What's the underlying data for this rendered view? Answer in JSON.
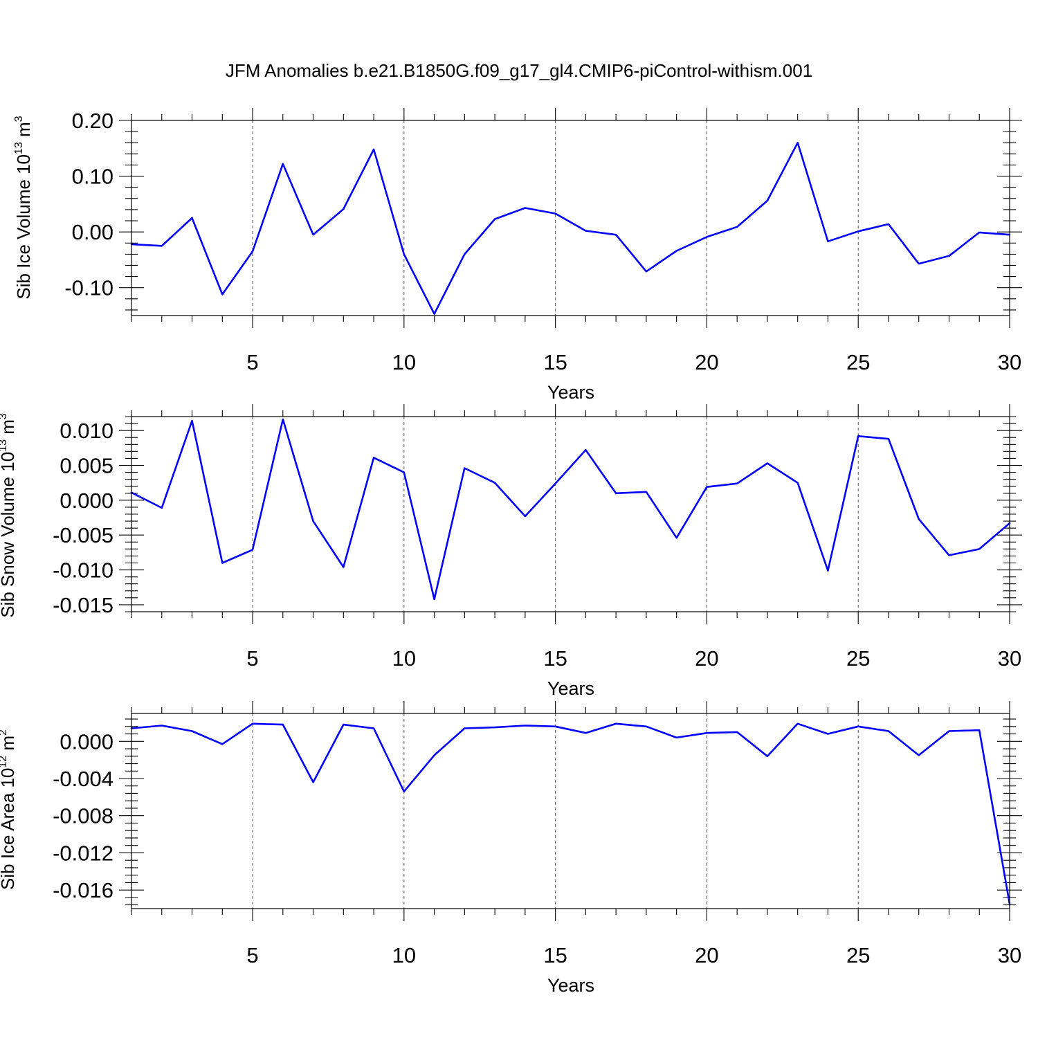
{
  "title": "JFM Anomalies b.e21.B1850G.f09_g17_gl4.CMIP6-piControl-withism.001",
  "colors": {
    "line": "#0000ff",
    "frame": "#000000",
    "grid": "#555555"
  },
  "chart_data": [
    {
      "type": "line",
      "ylabel": {
        "base": "Sib Ice Volume 10",
        "exp": "13",
        "unit": " m",
        "unit_exp": "3"
      },
      "xlabel": "Years",
      "xlim": [
        1,
        30
      ],
      "ylim": [
        -0.15,
        0.2
      ],
      "xticks": [
        5,
        10,
        15,
        20,
        25,
        30
      ],
      "yticks": [
        -0.1,
        0.0,
        0.1,
        0.2
      ],
      "yticklabels": [
        "-0.10",
        "0.00",
        "0.10",
        "0.20"
      ],
      "grid_x": [
        5,
        10,
        15,
        20,
        25
      ],
      "x": [
        1,
        2,
        3,
        4,
        5,
        6,
        7,
        8,
        9,
        10,
        11,
        12,
        13,
        14,
        15,
        16,
        17,
        18,
        19,
        20,
        21,
        22,
        23,
        24,
        25,
        26,
        27,
        28,
        29,
        30
      ],
      "values": [
        -0.022,
        -0.025,
        0.025,
        -0.112,
        -0.035,
        0.122,
        -0.005,
        0.041,
        0.148,
        -0.04,
        -0.147,
        -0.04,
        0.023,
        0.043,
        0.033,
        0.002,
        -0.005,
        -0.071,
        -0.034,
        -0.009,
        0.009,
        0.056,
        0.16,
        -0.017,
        0.001,
        0.014,
        -0.057,
        -0.043,
        -0.001,
        -0.005
      ]
    },
    {
      "type": "line",
      "ylabel": {
        "base": "Sib Snow Volume 10",
        "exp": "13",
        "unit": " m",
        "unit_exp": "3"
      },
      "xlabel": "Years",
      "xlim": [
        1,
        30
      ],
      "ylim": [
        -0.016,
        0.012
      ],
      "xticks": [
        5,
        10,
        15,
        20,
        25,
        30
      ],
      "yticks": [
        -0.015,
        -0.01,
        -0.005,
        0.0,
        0.005,
        0.01
      ],
      "yticklabels": [
        "-0.015",
        "-0.010",
        "-0.005",
        "0.000",
        "0.005",
        "0.010"
      ],
      "grid_x": [
        5,
        10,
        15,
        20,
        25
      ],
      "x": [
        1,
        2,
        3,
        4,
        5,
        6,
        7,
        8,
        9,
        10,
        11,
        12,
        13,
        14,
        15,
        16,
        17,
        18,
        19,
        20,
        21,
        22,
        23,
        24,
        25,
        26,
        27,
        28,
        29,
        30
      ],
      "values": [
        0.0011,
        -0.0011,
        0.0114,
        -0.009,
        -0.0071,
        0.0116,
        -0.003,
        -0.0096,
        0.0061,
        0.004,
        -0.0142,
        0.0046,
        0.0025,
        -0.0023,
        0.0024,
        0.0072,
        0.001,
        0.0012,
        -0.0054,
        0.0019,
        0.0024,
        0.0053,
        0.0025,
        -0.0101,
        0.0092,
        0.0088,
        -0.0027,
        -0.0079,
        -0.007,
        -0.0033
      ]
    },
    {
      "type": "line",
      "ylabel": {
        "base": "Sib Ice Area 10",
        "exp": "12",
        "unit": " m",
        "unit_exp": "2"
      },
      "xlabel": "Years",
      "xlim": [
        1,
        30
      ],
      "ylim": [
        -0.018,
        0.003
      ],
      "xticks": [
        5,
        10,
        15,
        20,
        25,
        30
      ],
      "yticks": [
        -0.016,
        -0.012,
        -0.008,
        -0.004,
        0.0
      ],
      "yticklabels": [
        "-0.016",
        "-0.012",
        "-0.008",
        "-0.004",
        "0.000"
      ],
      "grid_x": [
        5,
        10,
        15,
        20,
        25
      ],
      "x": [
        1,
        2,
        3,
        4,
        5,
        6,
        7,
        8,
        9,
        10,
        11,
        12,
        13,
        14,
        15,
        16,
        17,
        18,
        19,
        20,
        21,
        22,
        23,
        24,
        25,
        26,
        27,
        28,
        29,
        30
      ],
      "values": [
        0.0014,
        0.0017,
        0.0011,
        -0.0003,
        0.0019,
        0.0018,
        -0.0044,
        0.0018,
        0.0014,
        -0.0054,
        -0.0015,
        0.0014,
        0.0015,
        0.0017,
        0.0016,
        0.0009,
        0.0019,
        0.0016,
        0.0004,
        0.0009,
        0.001,
        -0.0016,
        0.0019,
        0.0008,
        0.0016,
        0.0011,
        -0.0015,
        0.0011,
        0.0012,
        -0.0175
      ]
    }
  ]
}
